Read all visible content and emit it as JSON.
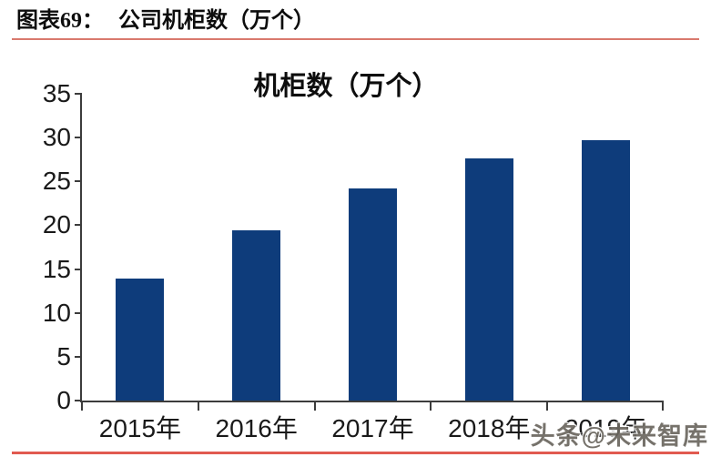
{
  "header": {
    "label": "图表69：",
    "title": "公司机柜数（万个）"
  },
  "watermark": "头条@未来智库",
  "chart_data": {
    "type": "bar",
    "title": "机柜数（万个）",
    "categories": [
      "2015年",
      "2016年",
      "2017年",
      "2018年",
      "2019年"
    ],
    "values": [
      13.9,
      19.4,
      24.2,
      27.6,
      29.7
    ],
    "xlabel": "",
    "ylabel": "",
    "ylim": [
      0,
      35
    ],
    "yticks": [
      0,
      5,
      10,
      15,
      20,
      25,
      30,
      35
    ],
    "grid": false,
    "legend": false
  },
  "colors": {
    "bar": "#0e3c7b",
    "header_rule": "#d97a6e",
    "footer_rule": "#e15a50",
    "axis": "#3c3c3c",
    "text": "#1a1a1a",
    "watermark": "#6b675f"
  }
}
